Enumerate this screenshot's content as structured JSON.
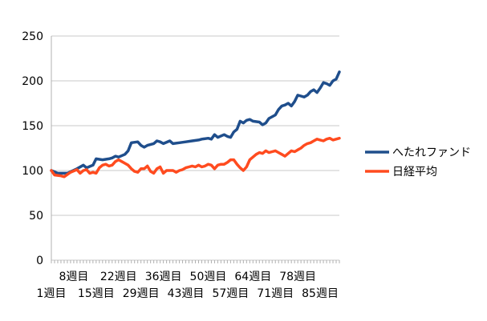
{
  "chart_data": {
    "type": "line",
    "title": "",
    "xlabel": "",
    "ylabel": "",
    "ylim": [
      0,
      250
    ],
    "yticks": [
      0,
      50,
      100,
      150,
      200,
      250
    ],
    "grid": true,
    "legend_position": "right",
    "x_tick_labels_upper": [
      "8週目",
      "22週目",
      "36週目",
      "50週目",
      "64週目",
      "78週目"
    ],
    "x_tick_labels_lower": [
      "1週目",
      "15週目",
      "29週目",
      "43週目",
      "57週目",
      "71週目",
      "85週目"
    ],
    "x_first_week": 1,
    "x_last_week": 91,
    "series": [
      {
        "name": "へたれファンド",
        "color": "#1f4e8c",
        "values": [
          [
            1,
            100
          ],
          [
            3,
            97
          ],
          [
            6,
            97
          ],
          [
            9,
            102
          ],
          [
            11,
            106
          ],
          [
            12,
            103
          ],
          [
            14,
            106
          ],
          [
            15,
            113
          ],
          [
            17,
            112
          ],
          [
            19,
            113
          ],
          [
            20,
            114
          ],
          [
            21,
            116
          ],
          [
            22,
            115
          ],
          [
            24,
            118
          ],
          [
            25,
            122
          ],
          [
            26,
            131
          ],
          [
            28,
            132
          ],
          [
            29,
            128
          ],
          [
            30,
            126
          ],
          [
            31,
            128
          ],
          [
            33,
            130
          ],
          [
            34,
            133
          ],
          [
            35,
            132
          ],
          [
            36,
            130
          ],
          [
            38,
            133
          ],
          [
            39,
            130
          ],
          [
            41,
            131
          ],
          [
            43,
            132
          ],
          [
            45,
            133
          ],
          [
            47,
            134
          ],
          [
            48,
            135
          ],
          [
            50,
            136
          ],
          [
            51,
            135
          ],
          [
            52,
            140
          ],
          [
            53,
            137
          ],
          [
            55,
            140
          ],
          [
            56,
            138
          ],
          [
            57,
            137
          ],
          [
            58,
            143
          ],
          [
            59,
            146
          ],
          [
            60,
            155
          ],
          [
            61,
            153
          ],
          [
            62,
            156
          ],
          [
            63,
            157
          ],
          [
            64,
            155
          ],
          [
            66,
            154
          ],
          [
            67,
            151
          ],
          [
            68,
            153
          ],
          [
            69,
            158
          ],
          [
            71,
            162
          ],
          [
            72,
            168
          ],
          [
            73,
            172
          ],
          [
            74,
            173
          ],
          [
            75,
            175
          ],
          [
            76,
            172
          ],
          [
            77,
            177
          ],
          [
            78,
            184
          ],
          [
            79,
            183
          ],
          [
            80,
            182
          ],
          [
            81,
            184
          ],
          [
            82,
            188
          ],
          [
            83,
            190
          ],
          [
            84,
            187
          ],
          [
            85,
            192
          ],
          [
            86,
            198
          ],
          [
            87,
            197
          ],
          [
            88,
            195
          ],
          [
            89,
            200
          ],
          [
            90,
            202
          ],
          [
            91,
            210
          ]
        ]
      },
      {
        "name": "日経平均",
        "color": "#ff4b1f",
        "values": [
          [
            1,
            100
          ],
          [
            2,
            95
          ],
          [
            4,
            94
          ],
          [
            5,
            93
          ],
          [
            7,
            98
          ],
          [
            9,
            101
          ],
          [
            10,
            97
          ],
          [
            11,
            100
          ],
          [
            12,
            101
          ],
          [
            13,
            97
          ],
          [
            14,
            98
          ],
          [
            15,
            97
          ],
          [
            16,
            103
          ],
          [
            17,
            106
          ],
          [
            18,
            107
          ],
          [
            19,
            105
          ],
          [
            20,
            106
          ],
          [
            21,
            110
          ],
          [
            22,
            112
          ],
          [
            23,
            110
          ],
          [
            24,
            108
          ],
          [
            25,
            106
          ],
          [
            26,
            102
          ],
          [
            27,
            99
          ],
          [
            28,
            98
          ],
          [
            29,
            102
          ],
          [
            30,
            102
          ],
          [
            31,
            105
          ],
          [
            32,
            99
          ],
          [
            33,
            97
          ],
          [
            34,
            102
          ],
          [
            35,
            104
          ],
          [
            36,
            97
          ],
          [
            37,
            100
          ],
          [
            38,
            100
          ],
          [
            39,
            100
          ],
          [
            40,
            98
          ],
          [
            41,
            100
          ],
          [
            42,
            101
          ],
          [
            43,
            103
          ],
          [
            44,
            104
          ],
          [
            45,
            105
          ],
          [
            46,
            104
          ],
          [
            47,
            106
          ],
          [
            48,
            104
          ],
          [
            49,
            105
          ],
          [
            50,
            107
          ],
          [
            51,
            106
          ],
          [
            52,
            102
          ],
          [
            53,
            106
          ],
          [
            54,
            107
          ],
          [
            55,
            107
          ],
          [
            56,
            109
          ],
          [
            57,
            112
          ],
          [
            58,
            112
          ],
          [
            59,
            107
          ],
          [
            60,
            103
          ],
          [
            61,
            100
          ],
          [
            62,
            104
          ],
          [
            63,
            112
          ],
          [
            64,
            115
          ],
          [
            65,
            118
          ],
          [
            66,
            120
          ],
          [
            67,
            119
          ],
          [
            68,
            122
          ],
          [
            69,
            120
          ],
          [
            70,
            121
          ],
          [
            71,
            122
          ],
          [
            72,
            120
          ],
          [
            73,
            118
          ],
          [
            74,
            116
          ],
          [
            75,
            119
          ],
          [
            76,
            122
          ],
          [
            77,
            121
          ],
          [
            78,
            123
          ],
          [
            79,
            125
          ],
          [
            80,
            128
          ],
          [
            81,
            130
          ],
          [
            82,
            131
          ],
          [
            83,
            133
          ],
          [
            84,
            135
          ],
          [
            85,
            134
          ],
          [
            86,
            133
          ],
          [
            87,
            135
          ],
          [
            88,
            136
          ],
          [
            89,
            134
          ],
          [
            90,
            135
          ],
          [
            91,
            136
          ]
        ]
      }
    ]
  }
}
